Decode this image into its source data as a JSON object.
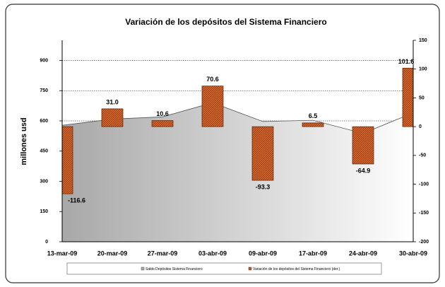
{
  "chart_data": {
    "type": "area_bar",
    "title": "Variación de los depósitos del Sistema Financiero",
    "y_label": "millones usd",
    "categories": [
      "13-mar-09",
      "20-mar-09",
      "27-mar-09",
      "03-abr-09",
      "09-abr-09",
      "17-abr-09",
      "24-abr-09",
      "30-abr-09"
    ],
    "series": [
      {
        "name": "Saldo Depósitos Sistema Financiero",
        "kind": "area",
        "color": "#a8a8a8",
        "values": [
          578,
          609,
          620,
          690,
          597,
          603,
          538,
          640
        ]
      },
      {
        "name": "Variación de los depósitos del Sistema Financiero (der.)",
        "kind": "bar",
        "axis": "y2",
        "color": "#d2642a",
        "values": [
          -116.6,
          31.0,
          10.6,
          70.6,
          -93.3,
          6.5,
          -64.9,
          101.6
        ],
        "value_labels": [
          "-116.6",
          "31.0",
          "10.6",
          "70.6",
          "-93.3",
          "6.5",
          "-64.9",
          "101.6"
        ]
      }
    ],
    "ylim": [
      0,
      1000
    ],
    "yticks": [
      0,
      150,
      300,
      450,
      600,
      750,
      900
    ],
    "y2lim": [
      -200,
      150
    ],
    "y2ticks": [
      -200,
      -150,
      -100,
      -50,
      0,
      50,
      100,
      150
    ],
    "grid": true,
    "legend": "bottom"
  }
}
